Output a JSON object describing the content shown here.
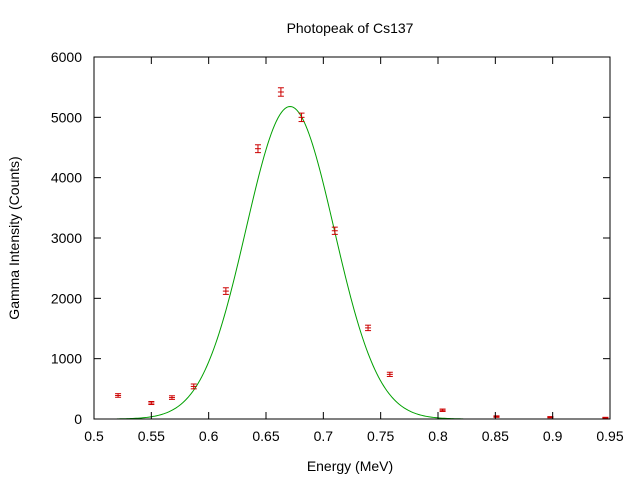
{
  "chart_data": {
    "type": "scatter",
    "title": "Photopeak of Cs137",
    "xlabel": "Energy (MeV)",
    "ylabel": "Gamma Intensity (Counts)",
    "xlim": [
      0.5,
      0.95
    ],
    "ylim": [
      0,
      6000
    ],
    "x_ticks": [
      0.5,
      0.55,
      0.6,
      0.65,
      0.7,
      0.75,
      0.8,
      0.85,
      0.9,
      0.95
    ],
    "x_tick_labels": [
      "0.5",
      "0.55",
      "0.6",
      "0.65",
      "0.7",
      "0.75",
      "0.8",
      "0.85",
      "0.9",
      "0.95"
    ],
    "y_ticks": [
      0,
      1000,
      2000,
      3000,
      4000,
      5000,
      6000
    ],
    "y_tick_labels": [
      "0",
      "1000",
      "2000",
      "3000",
      "4000",
      "5000",
      "6000"
    ],
    "grid": false,
    "legend": "none",
    "series": [
      {
        "kind": "points-with-errorbars",
        "color": "#cc0000",
        "points": [
          {
            "x": 0.521,
            "y": 390,
            "err": 30
          },
          {
            "x": 0.55,
            "y": 265,
            "err": 25
          },
          {
            "x": 0.568,
            "y": 355,
            "err": 30
          },
          {
            "x": 0.587,
            "y": 540,
            "err": 40
          },
          {
            "x": 0.615,
            "y": 2120,
            "err": 55
          },
          {
            "x": 0.643,
            "y": 4480,
            "err": 65
          },
          {
            "x": 0.663,
            "y": 5420,
            "err": 70
          },
          {
            "x": 0.681,
            "y": 5000,
            "err": 70
          },
          {
            "x": 0.71,
            "y": 3120,
            "err": 60
          },
          {
            "x": 0.739,
            "y": 1510,
            "err": 45
          },
          {
            "x": 0.758,
            "y": 740,
            "err": 35
          },
          {
            "x": 0.804,
            "y": 145,
            "err": 20
          },
          {
            "x": 0.851,
            "y": 40,
            "err": 12
          },
          {
            "x": 0.898,
            "y": 30,
            "err": 10
          },
          {
            "x": 0.946,
            "y": 20,
            "err": 8
          }
        ]
      },
      {
        "kind": "fit-line",
        "model": "gaussian",
        "color": "#00a000",
        "amplitude": 5180,
        "center": 0.671,
        "sigma": 0.0385,
        "x_range": [
          0.52,
          0.822
        ]
      }
    ]
  }
}
